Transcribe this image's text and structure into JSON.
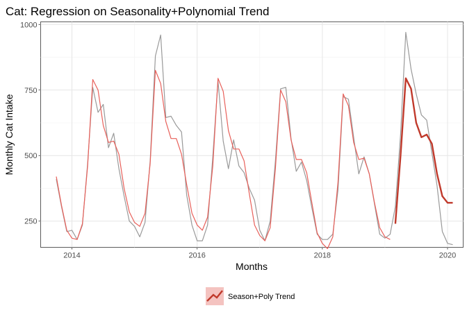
{
  "chart_data": {
    "type": "line",
    "title": "Cat: Regression on Seasonality+Polynomial Trend",
    "xlabel": "Months",
    "ylabel": "Monthly Cat Intake",
    "xlim": [
      2013.5,
      2020.25
    ],
    "ylim": [
      150,
      1010
    ],
    "x_ticks": [
      2014,
      2016,
      2018,
      2020
    ],
    "x_tick_labels": [
      "2014",
      "2016",
      "2018",
      "2020"
    ],
    "y_ticks": [
      250,
      500,
      750,
      1000
    ],
    "y_tick_labels": [
      "250",
      "500",
      "750",
      "1000"
    ],
    "grid": true,
    "legend_position": "bottom",
    "legend_entry": "Season+Poly Trend",
    "colors": {
      "actual": "#999999",
      "fitted": "#e8605a",
      "forecast": "#c0392b",
      "legend_fill": "#f4c3c0"
    },
    "series": [
      {
        "key": "actual",
        "x": [
          2013.75,
          2013.833,
          2013.917,
          2014.0,
          2014.083,
          2014.167,
          2014.25,
          2014.333,
          2014.417,
          2014.5,
          2014.583,
          2014.667,
          2014.75,
          2014.833,
          2014.917,
          2015.0,
          2015.083,
          2015.167,
          2015.25,
          2015.333,
          2015.417,
          2015.5,
          2015.583,
          2015.667,
          2015.75,
          2015.833,
          2015.917,
          2016.0,
          2016.083,
          2016.167,
          2016.25,
          2016.333,
          2016.417,
          2016.5,
          2016.583,
          2016.667,
          2016.75,
          2016.833,
          2016.917,
          2017.0,
          2017.083,
          2017.167,
          2017.25,
          2017.333,
          2017.417,
          2017.5,
          2017.583,
          2017.667,
          2017.75,
          2017.833,
          2017.917,
          2018.0,
          2018.083,
          2018.167,
          2018.25,
          2018.333,
          2018.417,
          2018.5,
          2018.583,
          2018.667,
          2018.75,
          2018.833,
          2018.917,
          2019.0,
          2019.083,
          2019.167,
          2019.25,
          2019.333,
          2019.417,
          2019.5,
          2019.583,
          2019.667,
          2019.75,
          2019.833,
          2019.917,
          2020.0,
          2020.083
        ],
        "values": [
          410,
          305,
          210,
          215,
          180,
          235,
          470,
          760,
          665,
          695,
          530,
          585,
          450,
          345,
          250,
          230,
          190,
          245,
          480,
          880,
          960,
          645,
          650,
          615,
          590,
          350,
          235,
          175,
          175,
          235,
          495,
          785,
          555,
          450,
          560,
          460,
          435,
          375,
          330,
          215,
          175,
          250,
          480,
          755,
          760,
          565,
          440,
          475,
          405,
          300,
          200,
          180,
          180,
          200,
          370,
          725,
          715,
          570,
          430,
          495,
          430,
          315,
          200,
          185,
          200,
          305,
          580,
          970,
          830,
          735,
          655,
          635,
          510,
          385,
          210,
          165,
          160
        ]
      },
      {
        "key": "fitted",
        "x": [
          2013.75,
          2013.833,
          2013.917,
          2014.0,
          2014.083,
          2014.167,
          2014.25,
          2014.333,
          2014.417,
          2014.5,
          2014.583,
          2014.667,
          2014.75,
          2014.833,
          2014.917,
          2015.0,
          2015.083,
          2015.167,
          2015.25,
          2015.333,
          2015.417,
          2015.5,
          2015.583,
          2015.667,
          2015.75,
          2015.833,
          2015.917,
          2016.0,
          2016.083,
          2016.167,
          2016.25,
          2016.333,
          2016.417,
          2016.5,
          2016.583,
          2016.667,
          2016.75,
          2016.833,
          2016.917,
          2017.0,
          2017.083,
          2017.167,
          2017.25,
          2017.333,
          2017.417,
          2017.5,
          2017.583,
          2017.667,
          2017.75,
          2017.833,
          2017.917,
          2018.0,
          2018.083,
          2018.167,
          2018.25,
          2018.333,
          2018.417,
          2018.5,
          2018.583,
          2018.667,
          2018.75,
          2018.833,
          2018.917,
          2019.0,
          2019.083
        ],
        "values": [
          420,
          310,
          215,
          185,
          180,
          240,
          460,
          790,
          750,
          615,
          550,
          555,
          505,
          375,
          285,
          245,
          230,
          280,
          470,
          825,
          775,
          630,
          565,
          565,
          505,
          390,
          280,
          235,
          215,
          265,
          460,
          795,
          745,
          595,
          525,
          525,
          480,
          355,
          235,
          195,
          175,
          225,
          450,
          750,
          705,
          560,
          485,
          485,
          435,
          320,
          205,
          165,
          145,
          190,
          400,
          735,
          690,
          550,
          485,
          490,
          430,
          320,
          225,
          190,
          180
        ]
      },
      {
        "key": "forecast",
        "x": [
          2019.167,
          2019.25,
          2019.333,
          2019.417,
          2019.5,
          2019.583,
          2019.667,
          2019.75,
          2019.833,
          2019.917,
          2020.0,
          2020.083
        ],
        "values": [
          240,
          500,
          795,
          755,
          625,
          570,
          580,
          545,
          430,
          345,
          320,
          320
        ]
      }
    ]
  }
}
